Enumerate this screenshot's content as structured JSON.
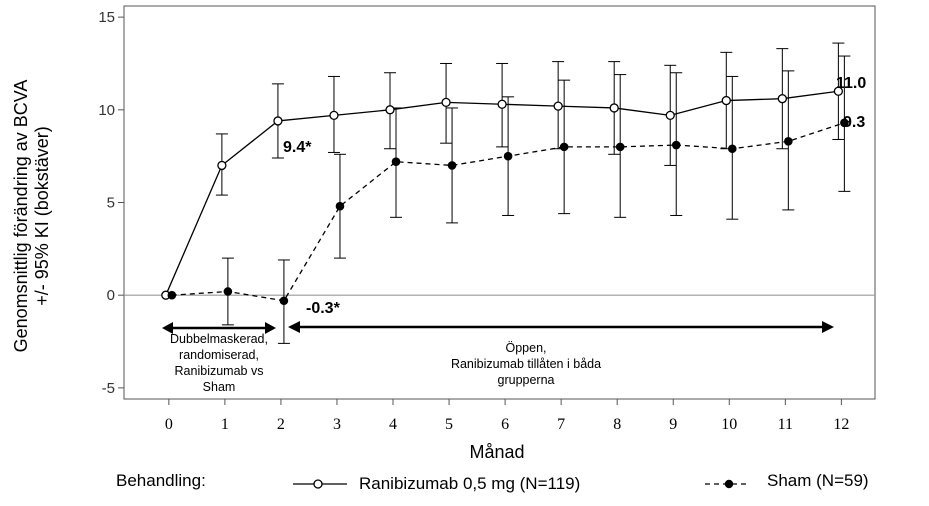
{
  "chart_data": {
    "type": "line",
    "title": "",
    "ylabel_line1": "Genomsnittlig förändring av  BCVA",
    "ylabel_line2": "+/- 95% KI (bokstäver)",
    "xlabel": "Månad",
    "xlim": [
      -0.8,
      12.6
    ],
    "ylim": [
      -5.6,
      15.6
    ],
    "x_ticks": [
      0,
      1,
      2,
      3,
      4,
      5,
      6,
      7,
      8,
      9,
      10,
      11,
      12
    ],
    "y_ticks": [
      -5,
      0,
      5,
      10,
      15
    ],
    "reference_line_y": 0,
    "series": [
      {
        "name": "Ranibizumab 0,5 mg (N=119)",
        "line_style": "solid",
        "marker": "open-circle",
        "x": [
          0,
          1,
          2,
          3,
          4,
          5,
          6,
          7,
          8,
          9,
          10,
          11,
          12
        ],
        "values": [
          0.0,
          7.0,
          9.4,
          9.7,
          10.0,
          10.4,
          10.3,
          10.2,
          10.1,
          9.7,
          10.5,
          10.6,
          11.0
        ],
        "ci_lower": [
          0.0,
          5.4,
          7.4,
          7.7,
          7.9,
          8.2,
          8.0,
          7.9,
          7.6,
          7.0,
          7.9,
          7.9,
          8.4
        ],
        "ci_upper": [
          0.0,
          8.7,
          11.4,
          11.8,
          12.0,
          12.5,
          12.5,
          12.6,
          12.6,
          12.4,
          13.1,
          13.3,
          13.6
        ]
      },
      {
        "name": "Sham (N=59)",
        "line_style": "dashed",
        "marker": "filled-circle",
        "x": [
          0,
          1,
          2,
          3,
          4,
          5,
          6,
          7,
          8,
          9,
          10,
          11,
          12
        ],
        "values": [
          0.0,
          0.2,
          -0.3,
          4.8,
          7.2,
          7.0,
          7.5,
          8.0,
          8.0,
          8.1,
          7.9,
          8.3,
          9.3
        ],
        "ci_lower": [
          0.0,
          -1.6,
          -2.6,
          2.0,
          4.2,
          3.9,
          4.3,
          4.4,
          4.2,
          4.3,
          4.1,
          4.6,
          5.6
        ],
        "ci_upper": [
          0.0,
          2.0,
          1.9,
          7.6,
          10.1,
          10.1,
          10.7,
          11.6,
          11.9,
          12.0,
          11.8,
          12.1,
          12.9
        ]
      }
    ],
    "annotations": {
      "ranibizumab_m2": "9.4*",
      "sham_m2": "-0.3*",
      "ranibizumab_end": "11.0",
      "sham_end": "9.3"
    },
    "phases": [
      {
        "from_month": 0,
        "to_month": 2,
        "lines": [
          "Dubbelmaskerad,",
          "randomiserad,",
          "Ranibizumab vs",
          "Sham"
        ]
      },
      {
        "from_month": 2,
        "to_month": 12,
        "lines": [
          "Öppen,",
          "Ranibizumab tillåten i båda",
          "grupperna"
        ]
      }
    ],
    "legend": {
      "title": "Behandling:",
      "placement": "bottom"
    }
  }
}
